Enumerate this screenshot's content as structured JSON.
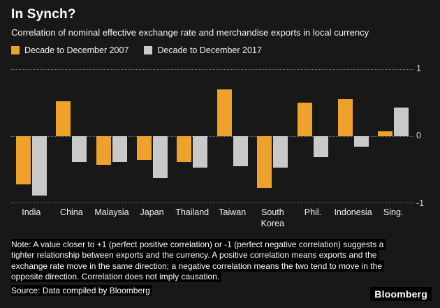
{
  "header": {
    "title": "In Synch?",
    "subtitle": "Correlation of nominal effective exchange rate and merchandise exports in local currency"
  },
  "legend": [
    {
      "label": "Decade to December 2007",
      "color": "#efa22b"
    },
    {
      "label": "Decade to December 2017",
      "color": "#c9c9c9"
    }
  ],
  "chart_data": {
    "type": "bar",
    "categories": [
      "India",
      "China",
      "Malaysia",
      "Japan",
      "Thailand",
      "Taiwan",
      "South Korea",
      "Phil.",
      "Indonesia",
      "Sing."
    ],
    "series": [
      {
        "name": "Decade to December 2007",
        "color": "#efa22b",
        "values": [
          -0.72,
          0.52,
          -0.43,
          -0.35,
          -0.39,
          0.7,
          -0.77,
          0.5,
          0.55,
          0.07
        ]
      },
      {
        "name": "Decade to December 2017",
        "color": "#c9c9c9",
        "values": [
          -0.89,
          -0.39,
          -0.39,
          -0.63,
          -0.47,
          -0.45,
          -0.47,
          -0.31,
          -0.16,
          0.43
        ]
      }
    ],
    "title": "In Synch?",
    "xlabel": "",
    "ylabel": "",
    "ylim": [
      -1,
      1
    ],
    "yticks": [
      "1",
      "0",
      "-1"
    ],
    "grid": "dotted horizontal at 1, 0, -1",
    "legend_position": "top-left"
  },
  "footer": {
    "note": "Note: A value closer to +1 (perfect positive correlation) or -1 (perfect negative correlation) suggests a tighter relationship between exports and the currency. A positive correlation means exports and the exchange rate move in the same direction; a negative correlation means the two tend to move in the opposite direction. Correlation does not imply causation.",
    "source": "Source: Data compiled by Bloomberg",
    "brand": "Bloomberg"
  }
}
